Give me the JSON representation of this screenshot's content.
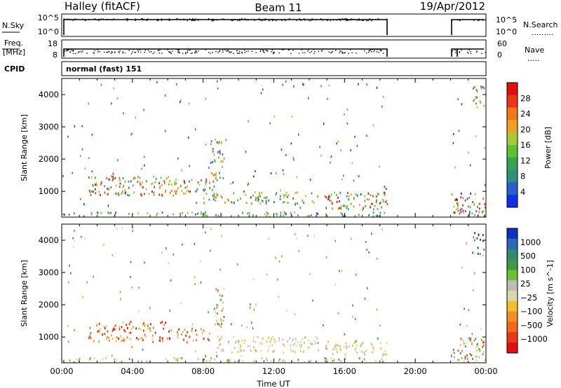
{
  "header": {
    "station": "Halley (fitACF)",
    "beam": "Beam 11",
    "date": "19/Apr/2012"
  },
  "strips": {
    "nsky_label": "N.Sky",
    "nsky_ticks": [
      "10^5",
      "10^0"
    ],
    "nsearch_label": "N.Search",
    "nsearch_ticks": [
      "10^5",
      "10^0"
    ],
    "freq_label": "Freq.",
    "freq_unit": "[MHz]",
    "freq_ticks": [
      "18",
      "8"
    ],
    "nave_label": "Nave",
    "nave_ticks": [
      "60",
      "0"
    ],
    "cpid_label": "CPID",
    "cpid_value": "normal (fast) 151"
  },
  "chart_data": [
    {
      "type": "heatmap",
      "quantity": "Power",
      "ylabel": "Slant Range [km]",
      "yticks": [
        1000,
        2000,
        3000,
        4000
      ],
      "ylim": [
        200,
        4500
      ],
      "xlim_hours": [
        0,
        24
      ],
      "colorbar": {
        "label": "Power [dB]",
        "ticks": [
          4,
          8,
          12,
          16,
          20,
          24,
          28
        ],
        "colors": [
          "#1030e8",
          "#2a5fc8",
          "#2e8f7a",
          "#3aa052",
          "#5cc12e",
          "#a8c83a",
          "#f0a020",
          "#f07818",
          "#e83818",
          "#e01010"
        ]
      },
      "data_gaps_hours": [
        [
          18.4,
          22.0
        ]
      ],
      "patches": [
        {
          "t0": 1.5,
          "t1": 6.2,
          "r0": 900,
          "r1": 1500,
          "level": "mid-high"
        },
        {
          "t0": 6.0,
          "t1": 8.6,
          "r0": 900,
          "r1": 1400,
          "level": "mid-high"
        },
        {
          "t0": 8.4,
          "t1": 9.2,
          "r0": 1400,
          "r1": 2600,
          "level": "mid"
        },
        {
          "t0": 8.0,
          "t1": 14.5,
          "r0": 650,
          "r1": 1000,
          "level": "mid"
        },
        {
          "t0": 14.8,
          "t1": 18.4,
          "r0": 450,
          "r1": 1000,
          "level": "mid-high"
        },
        {
          "t0": 0.0,
          "t1": 18.4,
          "r0": 250,
          "r1": 380,
          "level": "low-mid"
        },
        {
          "t0": 22.0,
          "t1": 24.0,
          "r0": 250,
          "r1": 1000,
          "level": "mixed"
        },
        {
          "t0": 23.2,
          "t1": 23.9,
          "r0": 3600,
          "r1": 4300,
          "level": "mid"
        }
      ]
    },
    {
      "type": "heatmap",
      "quantity": "Velocity",
      "ylabel": "Slant Range [km]",
      "yticks": [
        1000,
        2000,
        3000,
        4000
      ],
      "ylim": [
        200,
        4500
      ],
      "xlim_hours": [
        0,
        24
      ],
      "xticks": [
        "00:00",
        "04:00",
        "08:00",
        "12:00",
        "16:00",
        "20:00",
        "00:00"
      ],
      "xlabel": "Time UT",
      "colorbar": {
        "label": "Velocity [m s^-1]",
        "ticks": [
          "1000",
          "500",
          "100",
          "25",
          "−25",
          "−100",
          "−500",
          "−1000"
        ],
        "colors": [
          "#1030c0",
          "#2a68b8",
          "#2e8a70",
          "#3e9a48",
          "#6cc030",
          "#bbbbbb",
          "#d8d8a8",
          "#f0c030",
          "#f09020",
          "#f06818",
          "#e83818",
          "#e01010"
        ]
      },
      "data_gaps_hours": [
        [
          18.4,
          22.0
        ]
      ],
      "patches": [
        {
          "t0": 1.5,
          "t1": 6.2,
          "r0": 900,
          "r1": 1500,
          "level": "negative"
        },
        {
          "t0": 6.5,
          "t1": 8.6,
          "r0": 900,
          "r1": 1300,
          "level": "negative"
        },
        {
          "t0": 8.6,
          "t1": 9.2,
          "r0": 1300,
          "r1": 2600,
          "level": "mixed"
        },
        {
          "t0": 8.6,
          "t1": 14.5,
          "r0": 550,
          "r1": 1050,
          "level": "near-zero"
        },
        {
          "t0": 14.8,
          "t1": 18.4,
          "r0": 450,
          "r1": 900,
          "level": "near-zero"
        },
        {
          "t0": 0.0,
          "t1": 18.4,
          "r0": 250,
          "r1": 380,
          "level": "positive-small"
        },
        {
          "t0": 22.0,
          "t1": 24.0,
          "r0": 250,
          "r1": 1000,
          "level": "mixed"
        },
        {
          "t0": 23.2,
          "t1": 23.9,
          "r0": 3600,
          "r1": 4300,
          "level": "positive"
        }
      ]
    }
  ]
}
